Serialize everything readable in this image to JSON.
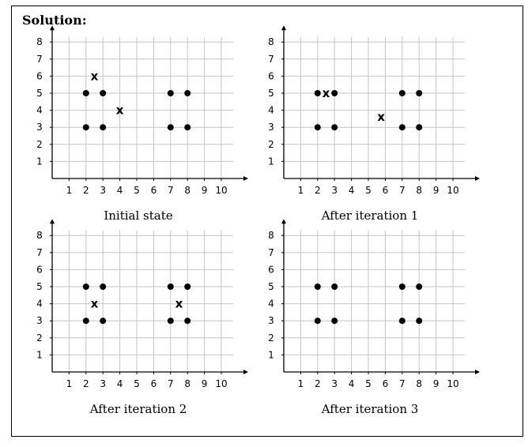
{
  "heading": "Solution:",
  "chart_data": [
    {
      "type": "scatter",
      "title": "Initial state",
      "xlim": [
        0,
        10
      ],
      "ylim": [
        0,
        8
      ],
      "xticks": [
        "1",
        "2",
        "3",
        "4",
        "5",
        "6",
        "7",
        "8",
        "9",
        "10"
      ],
      "yticks": [
        "1",
        "2",
        "3",
        "4",
        "5",
        "6",
        "7",
        "8"
      ],
      "grid": true,
      "series": [
        {
          "marker": "dot",
          "points": [
            [
              2,
              5
            ],
            [
              3,
              5
            ],
            [
              2,
              3
            ],
            [
              3,
              3
            ],
            [
              7,
              5
            ],
            [
              8,
              5
            ],
            [
              7,
              3
            ],
            [
              8,
              3
            ]
          ]
        },
        {
          "marker": "x",
          "points": [
            [
              2.5,
              6
            ],
            [
              4,
              4
            ]
          ]
        }
      ]
    },
    {
      "type": "scatter",
      "title": "After iteration 1",
      "xlim": [
        0,
        10
      ],
      "ylim": [
        0,
        8
      ],
      "xticks": [
        "1",
        "2",
        "3",
        "4",
        "5",
        "6",
        "7",
        "8",
        "9",
        "10"
      ],
      "yticks": [
        "1",
        "2",
        "3",
        "4",
        "5",
        "6",
        "7",
        "8"
      ],
      "grid": true,
      "series": [
        {
          "marker": "dot",
          "points": [
            [
              2,
              5
            ],
            [
              3,
              5
            ],
            [
              2,
              3
            ],
            [
              3,
              3
            ],
            [
              7,
              5
            ],
            [
              8,
              5
            ],
            [
              7,
              3
            ],
            [
              8,
              3
            ]
          ]
        },
        {
          "marker": "x",
          "points": [
            [
              2.5,
              5
            ],
            [
              5.75,
              3.6
            ]
          ]
        }
      ]
    },
    {
      "type": "scatter",
      "title": "After iteration 2",
      "xlim": [
        0,
        10
      ],
      "ylim": [
        0,
        8
      ],
      "xticks": [
        "1",
        "2",
        "3",
        "4",
        "5",
        "6",
        "7",
        "8",
        "9",
        "10"
      ],
      "yticks": [
        "1",
        "2",
        "3",
        "4",
        "5",
        "6",
        "7",
        "8"
      ],
      "grid": true,
      "series": [
        {
          "marker": "dot",
          "points": [
            [
              2,
              5
            ],
            [
              3,
              5
            ],
            [
              2,
              3
            ],
            [
              3,
              3
            ],
            [
              7,
              5
            ],
            [
              8,
              5
            ],
            [
              7,
              3
            ],
            [
              8,
              3
            ]
          ]
        },
        {
          "marker": "x",
          "points": [
            [
              2.5,
              4
            ],
            [
              7.5,
              4
            ]
          ]
        }
      ]
    },
    {
      "type": "scatter",
      "title": "After iteration 3",
      "xlim": [
        0,
        10
      ],
      "ylim": [
        0,
        8
      ],
      "xticks": [
        "1",
        "2",
        "3",
        "4",
        "5",
        "6",
        "7",
        "8",
        "9",
        "10"
      ],
      "yticks": [
        "1",
        "2",
        "3",
        "4",
        "5",
        "6",
        "7",
        "8"
      ],
      "grid": true,
      "series": [
        {
          "marker": "dot",
          "points": [
            [
              2,
              5
            ],
            [
              3,
              5
            ],
            [
              2,
              3
            ],
            [
              3,
              3
            ],
            [
              7,
              5
            ],
            [
              8,
              5
            ],
            [
              7,
              3
            ],
            [
              8,
              3
            ]
          ]
        },
        {
          "marker": "x",
          "points": []
        }
      ]
    }
  ]
}
